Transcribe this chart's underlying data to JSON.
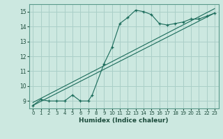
{
  "xlabel": "Humidex (Indice chaleur)",
  "bg_color": "#cce8e0",
  "grid_color": "#aacfc8",
  "line_color": "#1a6b5a",
  "xlim": [
    -0.5,
    23.5
  ],
  "ylim": [
    8.5,
    15.5
  ],
  "xticks": [
    0,
    1,
    2,
    3,
    4,
    5,
    6,
    7,
    8,
    9,
    10,
    11,
    12,
    13,
    14,
    15,
    16,
    17,
    18,
    19,
    20,
    21,
    22,
    23
  ],
  "yticks": [
    9,
    10,
    11,
    12,
    13,
    14,
    15
  ],
  "line1_x": [
    0,
    1,
    2,
    3,
    4,
    5,
    6,
    7,
    7.5,
    9,
    10,
    11,
    12,
    13,
    14,
    15,
    16,
    17,
    18,
    19,
    20,
    21,
    22,
    23
  ],
  "line1_y": [
    8.7,
    9.1,
    9.0,
    9.0,
    9.0,
    9.4,
    9.0,
    9.0,
    9.4,
    11.5,
    12.6,
    14.2,
    14.6,
    15.1,
    15.0,
    14.8,
    14.2,
    14.1,
    14.2,
    14.3,
    14.5,
    14.5,
    14.7,
    14.9
  ],
  "line2_x": [
    0,
    23
  ],
  "line2_y": [
    8.7,
    14.9
  ],
  "line3_x": [
    0,
    23
  ],
  "line3_y": [
    8.9,
    15.2
  ]
}
